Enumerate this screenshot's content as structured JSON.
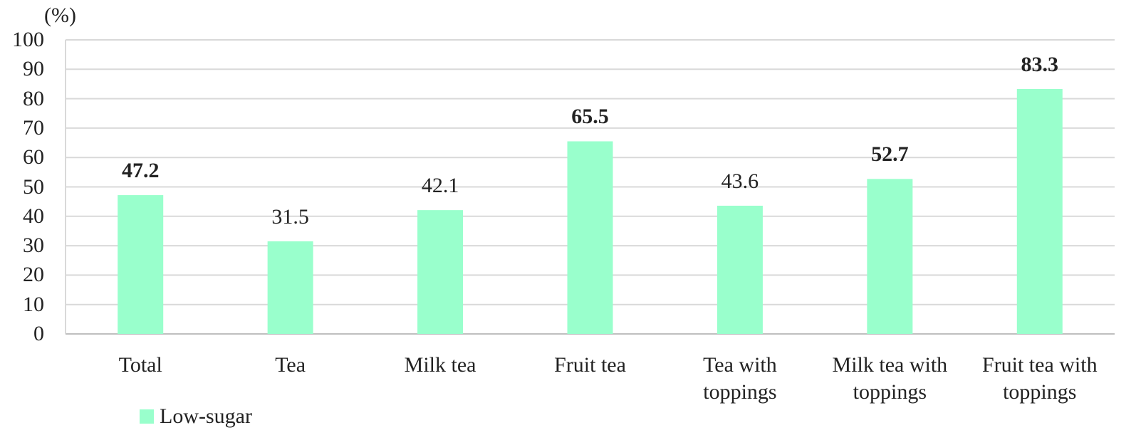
{
  "chart_data": {
    "type": "bar",
    "y_label": "(%)",
    "categories": [
      "Total",
      "Tea",
      "Milk tea",
      "Fruit tea",
      "Tea with toppings",
      "Milk tea with toppings",
      "Fruit tea with toppings"
    ],
    "series": [
      {
        "name": "Low-sugar",
        "color": "#99ffcc",
        "values": [
          47.2,
          31.5,
          42.1,
          65.5,
          43.6,
          52.7,
          83.3
        ]
      }
    ],
    "bold_value_labels": [
      true,
      false,
      false,
      true,
      false,
      true,
      true
    ],
    "ylim": [
      0,
      100
    ],
    "yticks": [
      0,
      10,
      20,
      30,
      40,
      50,
      60,
      70,
      80,
      90,
      100
    ],
    "grid": true,
    "legend": "bottom-left"
  }
}
